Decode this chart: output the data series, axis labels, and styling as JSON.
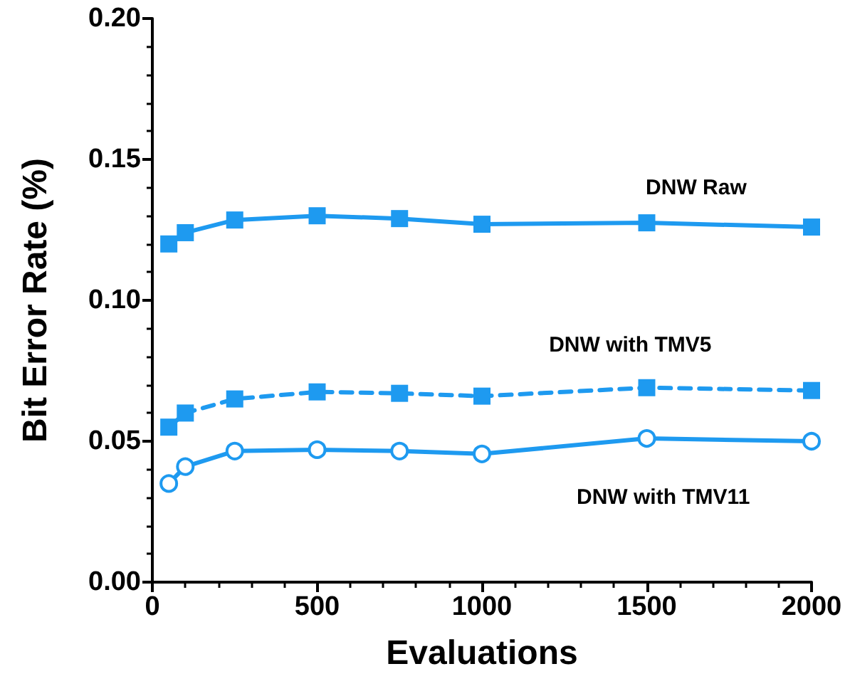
{
  "chart_data": {
    "type": "line",
    "xlabel": "Evaluations",
    "ylabel": "Bit Error Rate (%)",
    "x": [
      50,
      100,
      250,
      500,
      750,
      1000,
      1500,
      2000
    ],
    "series": [
      {
        "name": "DNW Raw",
        "color": "#1e9af0",
        "marker": "square",
        "line_style": "solid",
        "values": [
          0.12,
          0.124,
          0.1285,
          0.13,
          0.129,
          0.127,
          0.1275,
          0.126
        ]
      },
      {
        "name": "DNW with TMV5",
        "color": "#1e9af0",
        "marker": "square",
        "line_style": "dashed",
        "values": [
          0.055,
          0.06,
          0.065,
          0.0675,
          0.067,
          0.066,
          0.069,
          0.068
        ]
      },
      {
        "name": "DNW with TMV11",
        "color": "#1e9af0",
        "marker": "circle",
        "line_style": "solid",
        "values": [
          0.035,
          0.041,
          0.0465,
          0.047,
          0.0465,
          0.0455,
          0.051,
          0.05
        ]
      }
    ],
    "xlim": [
      0,
      2000
    ],
    "xticks": [
      0,
      500,
      1000,
      1500,
      2000
    ],
    "ylim": [
      0,
      0.2
    ],
    "yticks": [
      {
        "value": 0,
        "label": "0.00"
      },
      {
        "value": 0.05,
        "label": "0.05"
      },
      {
        "value": 0.1,
        "label": "0.10"
      },
      0.15,
      {
        "value": 0.2,
        "label": "0.20"
      }
    ],
    "grid": false,
    "legend": false
  }
}
